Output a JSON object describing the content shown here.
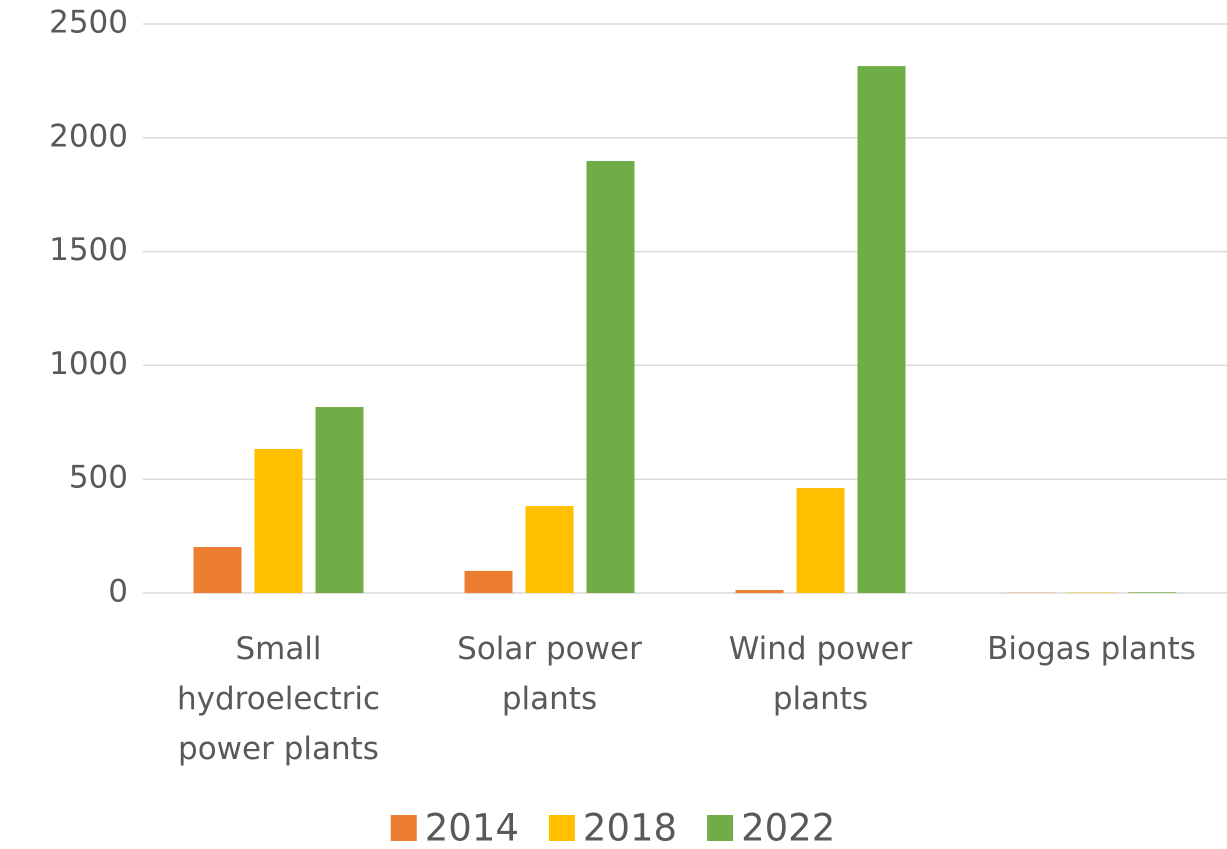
{
  "chart_data": {
    "type": "bar",
    "categories": [
      "Small hydroelectric power plants",
      "Solar power plants",
      "Wind power plants",
      "Biogas plants"
    ],
    "series": [
      {
        "name": "2014",
        "color": "#ed7d31",
        "values": [
          202,
          97,
          13,
          1
        ]
      },
      {
        "name": "2018",
        "color": "#ffc000",
        "values": [
          633,
          382,
          461,
          2
        ]
      },
      {
        "name": "2022",
        "color": "#70ad47",
        "values": [
          817,
          1898,
          2315,
          3
        ]
      }
    ],
    "ylim": [
      0,
      2500
    ],
    "yticks": [
      0,
      500,
      1000,
      1500,
      2000,
      2500
    ],
    "grid": true,
    "legend": "bottom"
  }
}
